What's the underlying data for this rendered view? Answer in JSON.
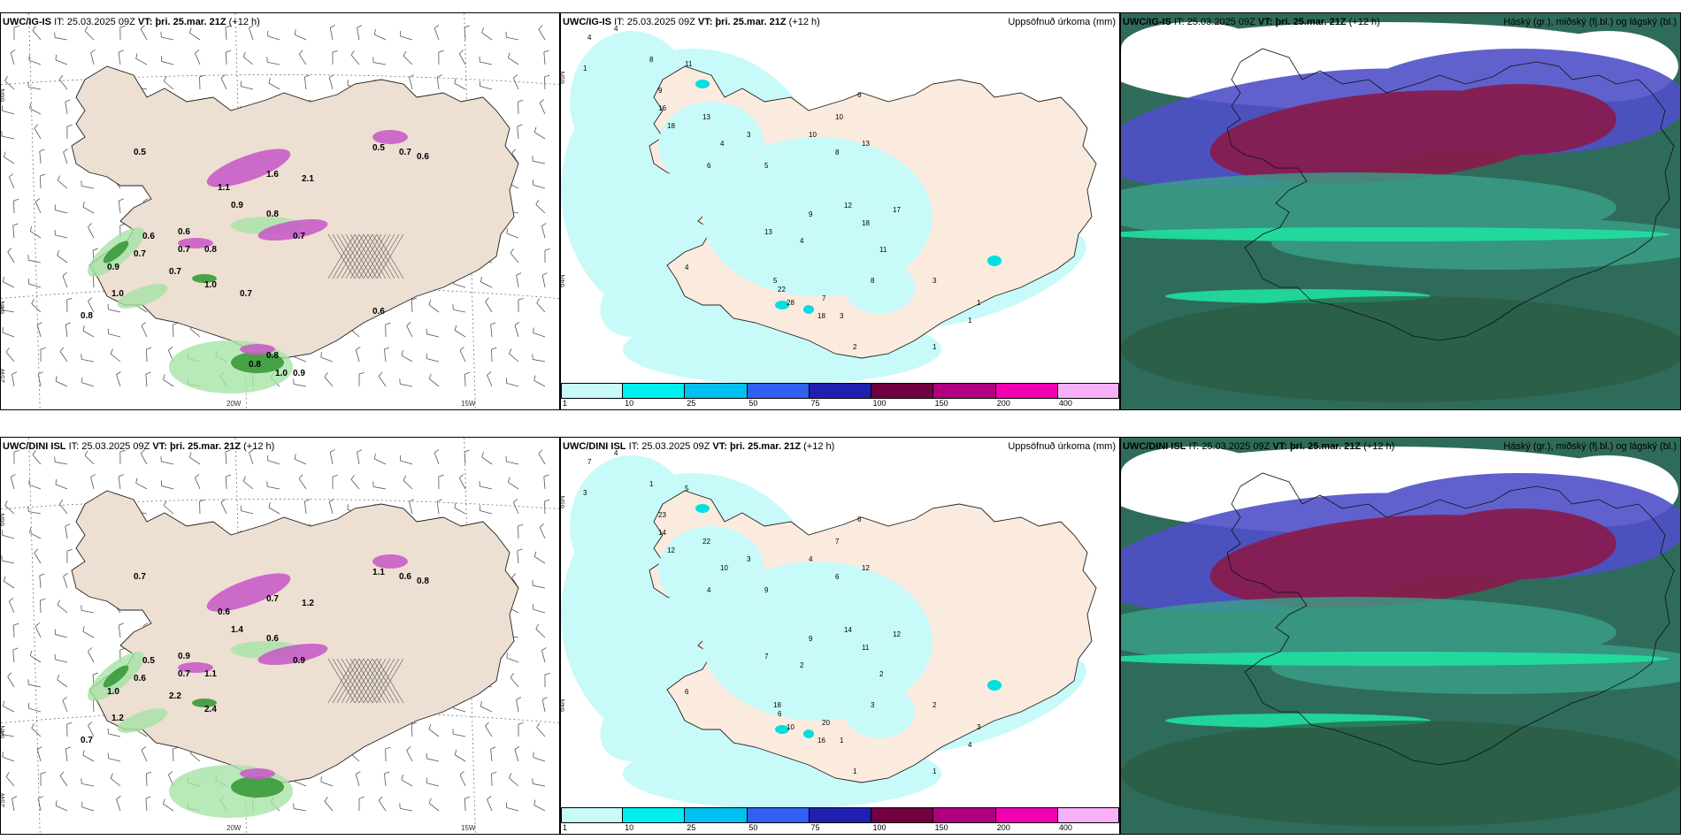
{
  "panels": [
    {
      "id": "p1",
      "header": {
        "model": "UWC/IG-IS",
        "it_label": "IT:",
        "it_value": "25.03.2025 09Z",
        "vt_label": "VT:",
        "vt_value": "þri. 25.mar. 21Z",
        "lead": "(+12 h)"
      },
      "right_title": "",
      "kind": "wind",
      "lat_labels": [
        "66N",
        "64N"
      ],
      "lon_labels": [
        "25W",
        "20W",
        "15W"
      ],
      "values": [
        "0.5",
        "0.6",
        "0.7",
        "0.9",
        "1.0",
        "0.8",
        "0.6",
        "0.7",
        "0.8",
        "0.7",
        "1.0",
        "0.9",
        "0.8",
        "0.7",
        "0.5",
        "0.7",
        "0.6",
        "1.1",
        "1.6",
        "2.1",
        "0.8",
        "1.0",
        "0.9",
        "0.8",
        "0.7",
        "0.6"
      ]
    },
    {
      "id": "p2",
      "header": {
        "model": "UWC/IG-IS",
        "it_label": "IT:",
        "it_value": "25.03.2025 09Z",
        "vt_label": "VT:",
        "vt_value": "þri. 25.mar. 21Z",
        "lead": "(+12 h)"
      },
      "right_title": "Uppsöfnuð úrkoma (mm)",
      "kind": "precip",
      "lat_labels": [
        "65N",
        "64N"
      ],
      "values": [
        "4",
        "4",
        "1",
        "8",
        "11",
        "16",
        "18",
        "13",
        "9",
        "4",
        "6",
        "3",
        "5",
        "10",
        "8",
        "13",
        "6",
        "10",
        "12",
        "17",
        "18",
        "11",
        "9",
        "13",
        "22",
        "28",
        "18",
        "7",
        "5",
        "4",
        "3",
        "2",
        "1",
        "1",
        "1",
        "3",
        "8",
        "4"
      ]
    },
    {
      "id": "p3",
      "header": {
        "model": "UWC/IG-IS",
        "it_label": "IT:",
        "it_value": "25.03.2025 09Z",
        "vt_label": "VT:",
        "vt_value": "þri. 25.mar. 21Z",
        "lead": "(+12 h)"
      },
      "right_title": "Háský (gr.), miðský (fj.bl.) og lágský (bl.)",
      "kind": "cloud"
    },
    {
      "id": "p4",
      "header": {
        "model": "UWC/DINI ISL",
        "it_label": "IT:",
        "it_value": "25.03.2025 09Z",
        "vt_label": "VT:",
        "vt_value": "þri. 25.mar. 21Z",
        "lead": "(+12 h)"
      },
      "right_title": "",
      "kind": "wind",
      "lat_labels": [
        "66N",
        "64N"
      ],
      "lon_labels": [
        "25W",
        "20W",
        "15W"
      ],
      "values": [
        "0.7",
        "0.5",
        "0.6",
        "1.0",
        "1.2",
        "0.7",
        "0.9",
        "0.7",
        "1.1",
        "2.2",
        "2.4",
        "1.4",
        "0.6",
        "0.9",
        "1.1",
        "0.6",
        "0.8",
        "0.6",
        "0.7",
        "1.2"
      ]
    },
    {
      "id": "p5",
      "header": {
        "model": "UWC/DINI ISL",
        "it_label": "IT:",
        "it_value": "25.03.2025 09Z",
        "vt_label": "VT:",
        "vt_value": "þri. 25.mar. 21Z",
        "lead": "(+12 h)"
      },
      "right_title": "Uppsöfnuð úrkoma (mm)",
      "kind": "precip",
      "lat_labels": [
        "65N",
        "64N"
      ],
      "values": [
        "7",
        "4",
        "3",
        "1",
        "5",
        "14",
        "12",
        "22",
        "23",
        "10",
        "4",
        "3",
        "9",
        "7",
        "6",
        "12",
        "6",
        "4",
        "14",
        "12",
        "11",
        "2",
        "9",
        "7",
        "6",
        "10",
        "16",
        "20",
        "18",
        "2",
        "1",
        "1",
        "1",
        "4",
        "3",
        "2",
        "3",
        "6"
      ]
    },
    {
      "id": "p6",
      "header": {
        "model": "UWC/DINI ISL",
        "it_label": "IT:",
        "it_value": "25.03.2025 09Z",
        "vt_label": "VT:",
        "vt_value": "þri. 25.mar. 21Z",
        "lead": "(+12 h)"
      },
      "right_title": "Háský (gr.), miðský (fj.bl.) og lágský (bl.)",
      "kind": "cloud"
    }
  ],
  "colorbar": {
    "colors": [
      "#c8fafa",
      "#00f0f0",
      "#00c0f0",
      "#3060f0",
      "#2020b0",
      "#700040",
      "#b00080",
      "#f000b0",
      "#f8b0f8"
    ],
    "ticks": [
      "1",
      "10",
      "25",
      "50",
      "75",
      "100",
      "150",
      "200",
      "400"
    ]
  }
}
